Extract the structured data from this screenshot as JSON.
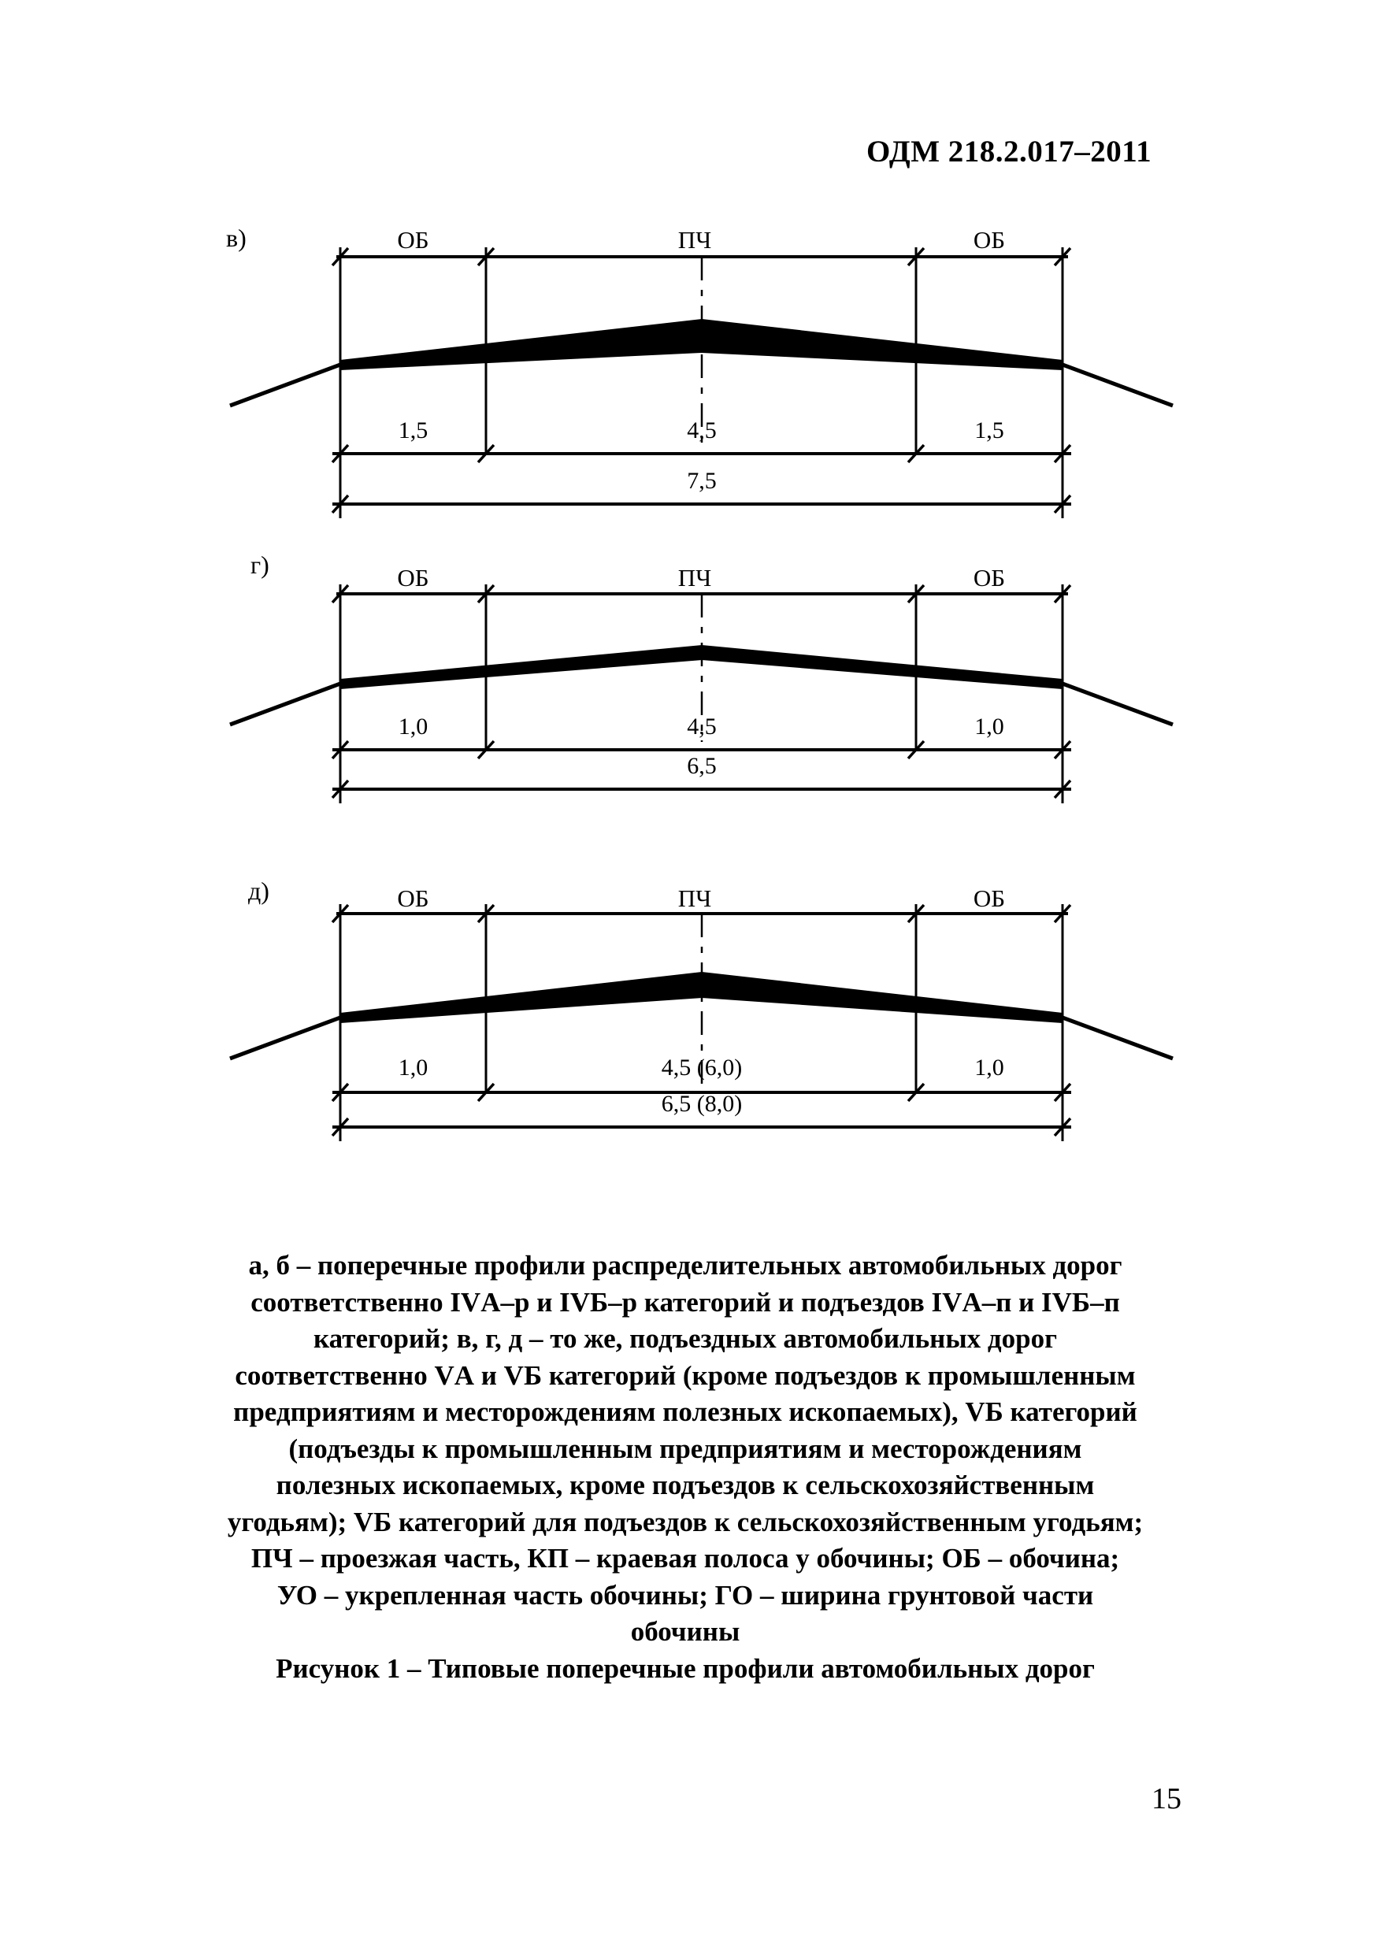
{
  "header": {
    "title": "ОДМ 218.2.017–2011"
  },
  "footer": {
    "page_number": "15"
  },
  "diagrams": [
    {
      "label": "в)",
      "zones": [
        "ОБ",
        "ПЧ",
        "ОБ"
      ],
      "widths": [
        "1,5",
        "4,5",
        "1,5"
      ],
      "total": "7,5"
    },
    {
      "label": "г)",
      "zones": [
        "ОБ",
        "ПЧ",
        "ОБ"
      ],
      "widths": [
        "1,0",
        "4,5",
        "1,0"
      ],
      "total": "6,5"
    },
    {
      "label": "д)",
      "zones": [
        "ОБ",
        "ПЧ",
        "ОБ"
      ],
      "widths": [
        "1,0",
        "4,5 (6,0)",
        "1,0"
      ],
      "total": "6,5 (8,0)"
    }
  ],
  "caption": {
    "lines": [
      "а, б – поперечные профили распределительных автомобильных дорог",
      "соответственно IVА–р и IVБ–р категорий и подъездов IVА–п и IVБ–п",
      "категорий; в, г, д – то же, подъездных автомобильных дорог",
      "соответственно VА и VБ категорий (кроме подъездов к промышленным",
      "предприятиям и месторождениям полезных ископаемых), VБ категорий",
      "(подъезды к промышленным предприятиям и месторождениям",
      "полезных ископаемых, кроме подъездов к сельскохозяйственным",
      "угодьям); VБ категорий для подъездов к сельскохозяйственным угодьям;",
      "ПЧ – проезжая часть, КП – краевая полоса у обочины; ОБ – обочина;",
      "УО – укрепленная часть обочины; ГО – ширина грунтовой части",
      "обочины",
      "Рисунок 1 – Типовые поперечные профили автомобильных дорог"
    ]
  },
  "colors": {
    "ink": "#000000",
    "paper": "#ffffff"
  }
}
